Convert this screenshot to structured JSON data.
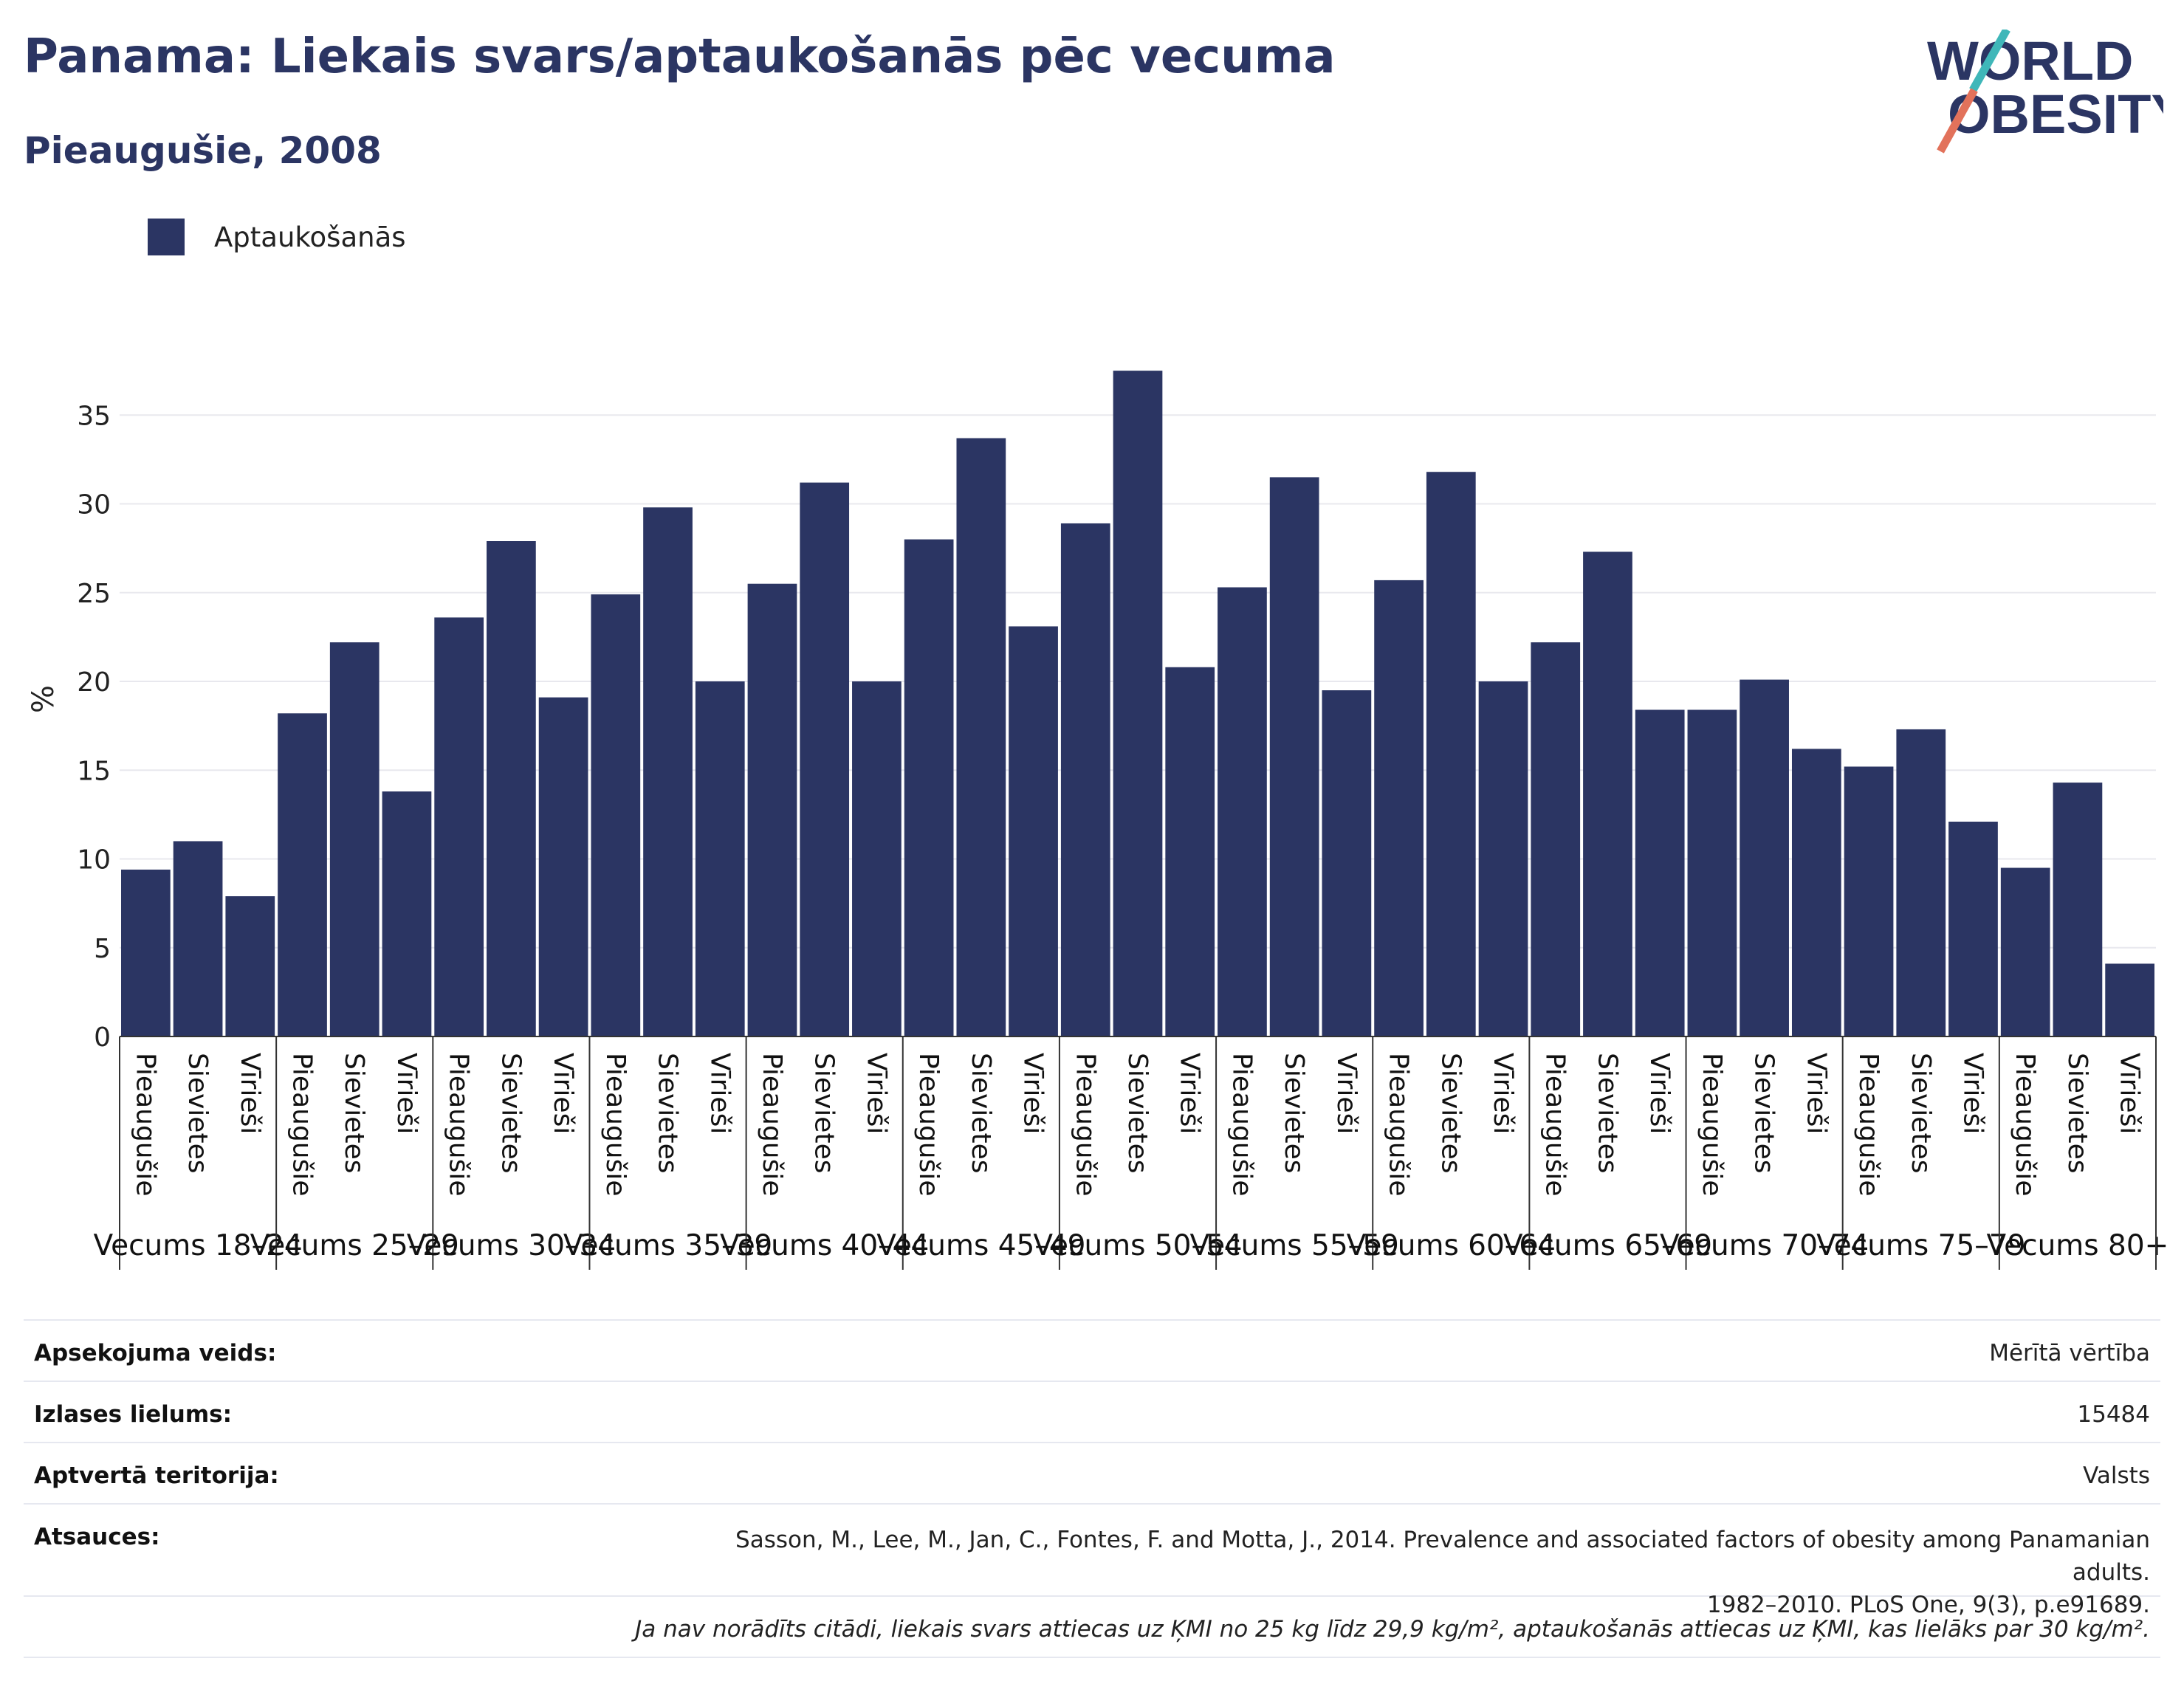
{
  "title": "Panama: Liekais svars/aptaukošanās pēc vecuma",
  "subtitle": "Pieaugušie, 2008",
  "logo": {
    "line1": "WORLD",
    "line2": "OBESITY"
  },
  "legend": {
    "label": "Aptaukošanās",
    "color": "#2b3563"
  },
  "chart_data": {
    "type": "bar",
    "ylabel": "%",
    "ylim": [
      0,
      38
    ],
    "yticks": [
      0,
      5,
      10,
      15,
      20,
      25,
      30,
      35
    ],
    "grid": true,
    "legend_position": "top-left",
    "series": [
      {
        "name": "Aptaukošanās",
        "color": "#2b3563"
      }
    ],
    "groups": [
      {
        "label": "Vecums 18–24",
        "bars": [
          {
            "label": "Pieaugušie",
            "value": 9.4
          },
          {
            "label": "Sievietes",
            "value": 11.0
          },
          {
            "label": "Vīrieši",
            "value": 7.9
          }
        ]
      },
      {
        "label": "Vecums 25–29",
        "bars": [
          {
            "label": "Pieaugušie",
            "value": 18.2
          },
          {
            "label": "Sievietes",
            "value": 22.2
          },
          {
            "label": "Vīrieši",
            "value": 13.8
          }
        ]
      },
      {
        "label": "Vecums 30–34",
        "bars": [
          {
            "label": "Pieaugušie",
            "value": 23.6
          },
          {
            "label": "Sievietes",
            "value": 27.9
          },
          {
            "label": "Vīrieši",
            "value": 19.1
          }
        ]
      },
      {
        "label": "Vecums 35–39",
        "bars": [
          {
            "label": "Pieaugušie",
            "value": 24.9
          },
          {
            "label": "Sievietes",
            "value": 29.8
          },
          {
            "label": "Vīrieši",
            "value": 20.0
          }
        ]
      },
      {
        "label": "Vecums 40–44",
        "bars": [
          {
            "label": "Pieaugušie",
            "value": 25.5
          },
          {
            "label": "Sievietes",
            "value": 31.2
          },
          {
            "label": "Vīrieši",
            "value": 20.0
          }
        ]
      },
      {
        "label": "Vecums 45–49",
        "bars": [
          {
            "label": "Pieaugušie",
            "value": 28.0
          },
          {
            "label": "Sievietes",
            "value": 33.7
          },
          {
            "label": "Vīrieši",
            "value": 23.1
          }
        ]
      },
      {
        "label": "Vecums 50–54",
        "bars": [
          {
            "label": "Pieaugušie",
            "value": 28.9
          },
          {
            "label": "Sievietes",
            "value": 37.5
          },
          {
            "label": "Vīrieši",
            "value": 20.8
          }
        ]
      },
      {
        "label": "Vecums 55–59",
        "bars": [
          {
            "label": "Pieaugušie",
            "value": 25.3
          },
          {
            "label": "Sievietes",
            "value": 31.5
          },
          {
            "label": "Vīrieši",
            "value": 19.5
          }
        ]
      },
      {
        "label": "Vecums 60–64",
        "bars": [
          {
            "label": "Pieaugušie",
            "value": 25.7
          },
          {
            "label": "Sievietes",
            "value": 31.8
          },
          {
            "label": "Vīrieši",
            "value": 20.0
          }
        ]
      },
      {
        "label": "Vecums 65–69",
        "bars": [
          {
            "label": "Pieaugušie",
            "value": 22.2
          },
          {
            "label": "Sievietes",
            "value": 27.3
          },
          {
            "label": "Vīrieši",
            "value": 18.4
          }
        ]
      },
      {
        "label": "Vecums 70–74",
        "bars": [
          {
            "label": "Pieaugušie",
            "value": 18.4
          },
          {
            "label": "Sievietes",
            "value": 20.1
          },
          {
            "label": "Vīrieši",
            "value": 16.2
          }
        ]
      },
      {
        "label": "Vecums 75–79",
        "bars": [
          {
            "label": "Pieaugušie",
            "value": 15.2
          },
          {
            "label": "Sievietes",
            "value": 17.3
          },
          {
            "label": "Vīrieši",
            "value": 12.1
          }
        ]
      },
      {
        "label": "Vecums 80+",
        "bars": [
          {
            "label": "Pieaugušie",
            "value": 9.5
          },
          {
            "label": "Sievietes",
            "value": 14.3
          },
          {
            "label": "Vīrieši",
            "value": 4.1
          }
        ]
      }
    ]
  },
  "meta": {
    "rows": [
      {
        "key": "Apsekojuma veids:",
        "value": "Mērītā vērtība"
      },
      {
        "key": "Izlases lielums:",
        "value": "15484"
      },
      {
        "key": "Aptvertā teritorija:",
        "value": "Valsts"
      }
    ],
    "references": {
      "key": "Atsauces:",
      "line1": "Sasson, M., Lee, M., Jan, C., Fontes, F. and Motta, J., 2014. Prevalence and associated factors of obesity among Panamanian adults.",
      "line2": "1982–2010. PLoS One, 9(3), p.e91689."
    },
    "note": "Ja nav norādīts citādi, liekais svars attiecas uz ĶMI no 25 kg līdz 29,9 kg/m², aptaukošanās attiecas uz ĶMI, kas lielāks par 30 kg/m²."
  }
}
